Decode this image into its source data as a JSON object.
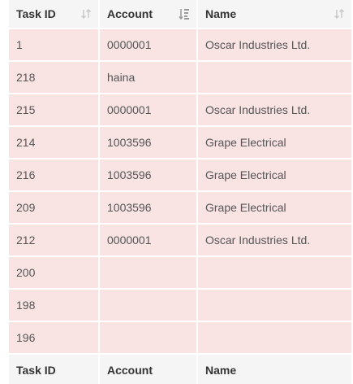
{
  "table": {
    "columns": [
      {
        "label": "Task ID",
        "sort_icon": "sort-both-icon"
      },
      {
        "label": "Account",
        "sort_icon": "sort-numeric-asc-icon"
      },
      {
        "label": "Name",
        "sort_icon": "sort-both-icon"
      }
    ],
    "rows": [
      {
        "task_id": "1",
        "account": "0000001",
        "name": "Oscar Industries Ltd."
      },
      {
        "task_id": "218",
        "account": "haina",
        "name": ""
      },
      {
        "task_id": "215",
        "account": "0000001",
        "name": "Oscar Industries Ltd."
      },
      {
        "task_id": "214",
        "account": "1003596",
        "name": "Grape Electrical"
      },
      {
        "task_id": "216",
        "account": "1003596",
        "name": "Grape Electrical"
      },
      {
        "task_id": "209",
        "account": "1003596",
        "name": "Grape Electrical"
      },
      {
        "task_id": "212",
        "account": "0000001",
        "name": "Oscar Industries Ltd."
      },
      {
        "task_id": "200",
        "account": "",
        "name": ""
      },
      {
        "task_id": "198",
        "account": "",
        "name": ""
      },
      {
        "task_id": "196",
        "account": "",
        "name": ""
      }
    ],
    "footer": [
      "Task ID",
      "Account",
      "Name"
    ]
  },
  "colors": {
    "header_bg": "#f5f5f5",
    "row_bg": "#f9e3e3",
    "icon": "#c8c8c8"
  }
}
